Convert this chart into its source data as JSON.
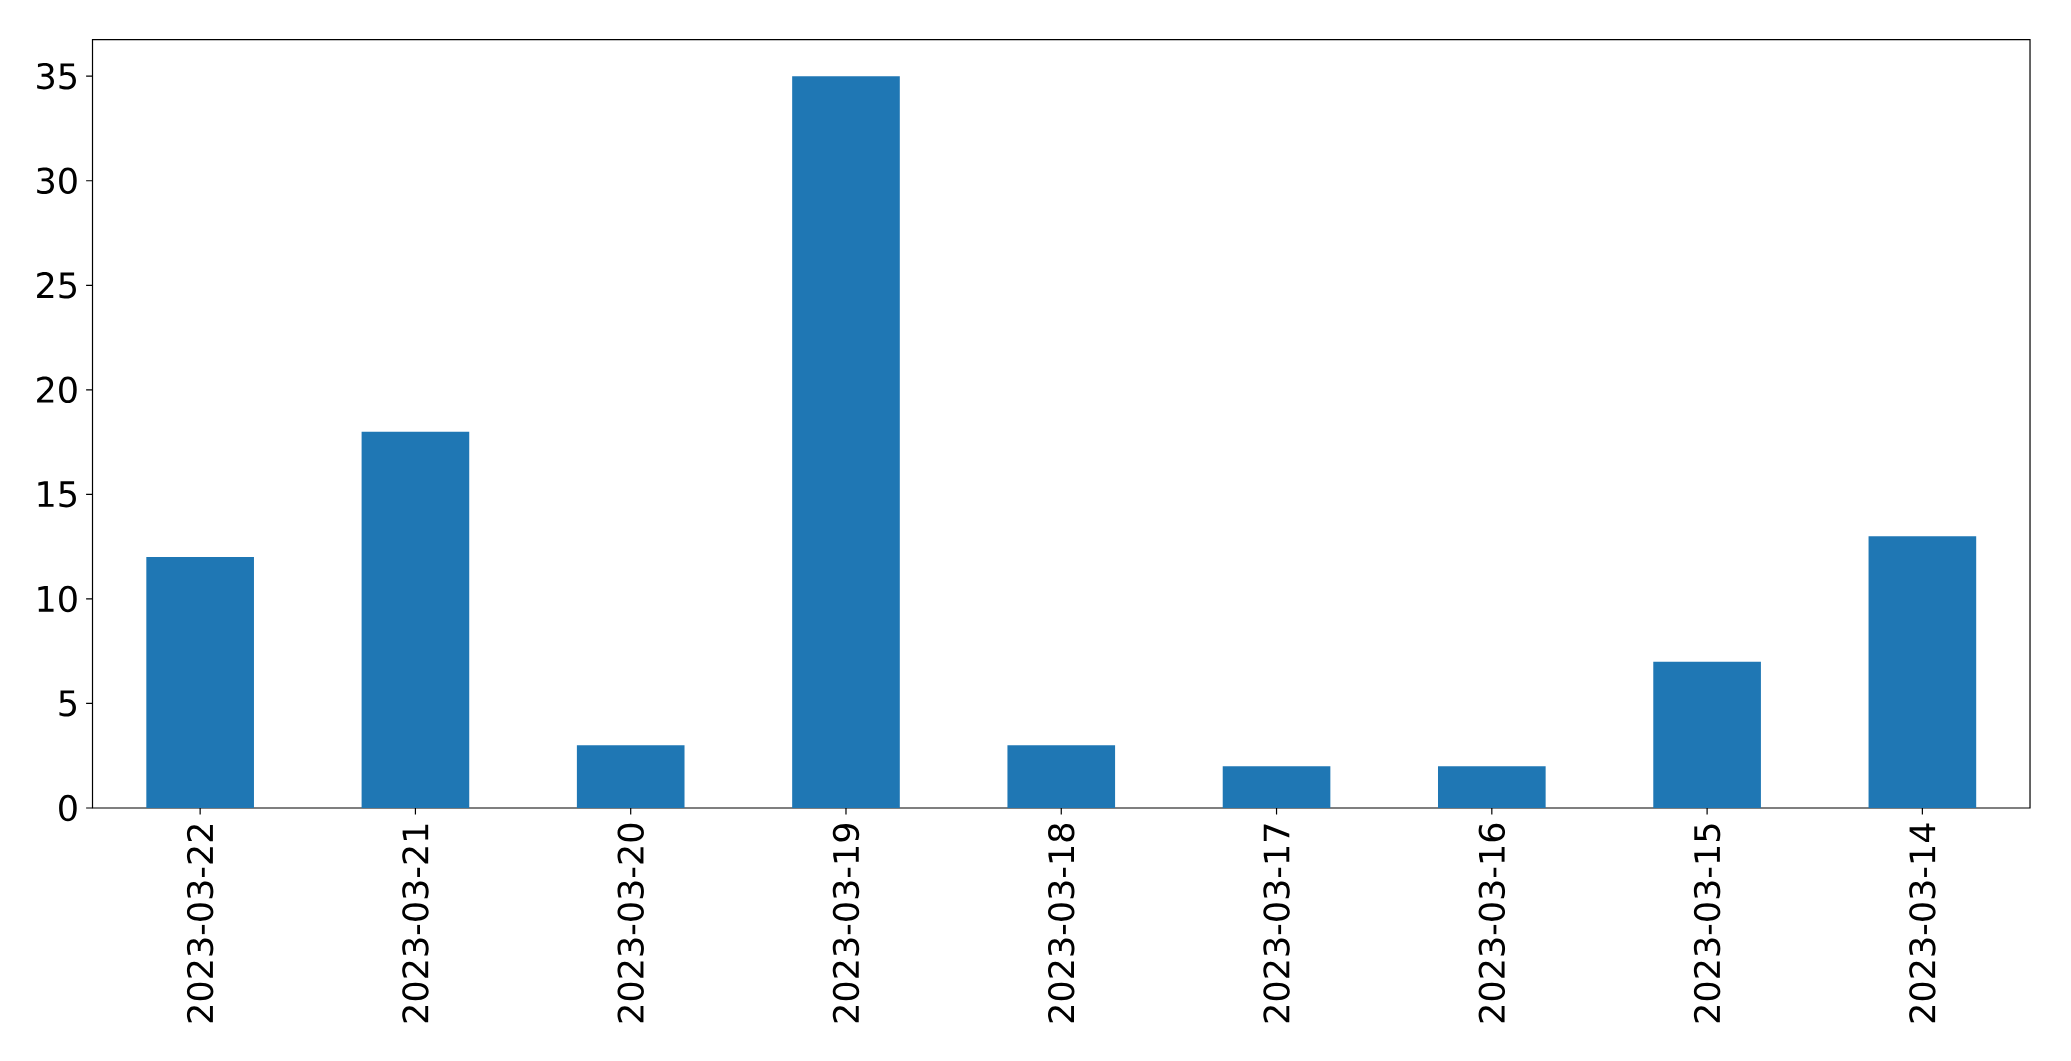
{
  "chart_data": {
    "type": "bar",
    "categories": [
      "2023-03-22",
      "2023-03-21",
      "2023-03-20",
      "2023-03-19",
      "2023-03-18",
      "2023-03-17",
      "2023-03-16",
      "2023-03-15",
      "2023-03-14"
    ],
    "values": [
      12,
      18,
      3,
      35,
      3,
      2,
      2,
      7,
      13
    ],
    "color": "#1f77b4",
    "ylim": [
      0,
      36.75
    ],
    "yticks": [
      0,
      5,
      10,
      15,
      20,
      25,
      30,
      35
    ]
  }
}
